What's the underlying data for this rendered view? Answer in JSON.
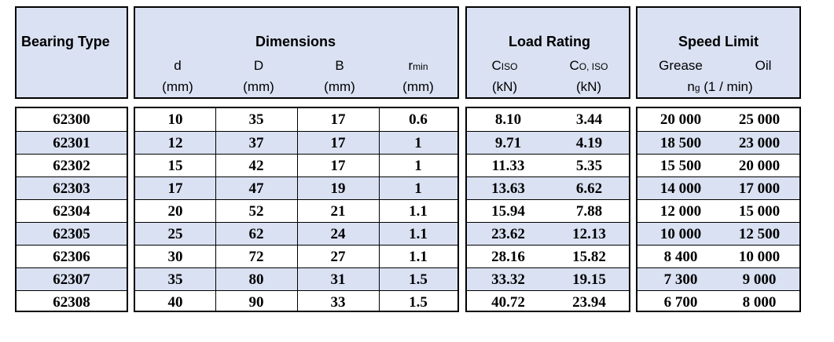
{
  "headers": {
    "bearing_type": "Bearing Type",
    "dimensions": "Dimensions",
    "load_rating": "Load Rating",
    "speed_limit": "Speed Limit",
    "d": "d",
    "D": "D",
    "B": "B",
    "r_main": "r",
    "r_sub": "min",
    "c_main": "C",
    "c_sub": "ISO",
    "c0_main": "C",
    "c0_sub": "O, ISO",
    "grease": "Grease",
    "oil": "Oil",
    "unit_mm": "(mm)",
    "unit_kn": "(kN)",
    "ng_main": "n",
    "ng_sub": "g",
    "ng_unit": " (1 / min)"
  },
  "rows": [
    {
      "type": "62300",
      "d": "10",
      "D": "35",
      "B": "17",
      "r": "0.6",
      "c": "8.10",
      "c0": "3.44",
      "grease": "20 000",
      "oil": "25 000"
    },
    {
      "type": "62301",
      "d": "12",
      "D": "37",
      "B": "17",
      "r": "1",
      "c": "9.71",
      "c0": "4.19",
      "grease": "18 500",
      "oil": "23 000"
    },
    {
      "type": "62302",
      "d": "15",
      "D": "42",
      "B": "17",
      "r": "1",
      "c": "11.33",
      "c0": "5.35",
      "grease": "15 500",
      "oil": "20 000"
    },
    {
      "type": "62303",
      "d": "17",
      "D": "47",
      "B": "19",
      "r": "1",
      "c": "13.63",
      "c0": "6.62",
      "grease": "14 000",
      "oil": "17 000"
    },
    {
      "type": "62304",
      "d": "20",
      "D": "52",
      "B": "21",
      "r": "1.1",
      "c": "15.94",
      "c0": "7.88",
      "grease": "12 000",
      "oil": "15 000"
    },
    {
      "type": "62305",
      "d": "25",
      "D": "62",
      "B": "24",
      "r": "1.1",
      "c": "23.62",
      "c0": "12.13",
      "grease": "10 000",
      "oil": "12 500"
    },
    {
      "type": "62306",
      "d": "30",
      "D": "72",
      "B": "27",
      "r": "1.1",
      "c": "28.16",
      "c0": "15.82",
      "grease": "8 400",
      "oil": "10 000"
    },
    {
      "type": "62307",
      "d": "35",
      "D": "80",
      "B": "31",
      "r": "1.5",
      "c": "33.32",
      "c0": "19.15",
      "grease": "7 300",
      "oil": "9 000"
    },
    {
      "type": "62308",
      "d": "40",
      "D": "90",
      "B": "33",
      "r": "1.5",
      "c": "40.72",
      "c0": "23.94",
      "grease": "6 700",
      "oil": "8 000"
    }
  ]
}
